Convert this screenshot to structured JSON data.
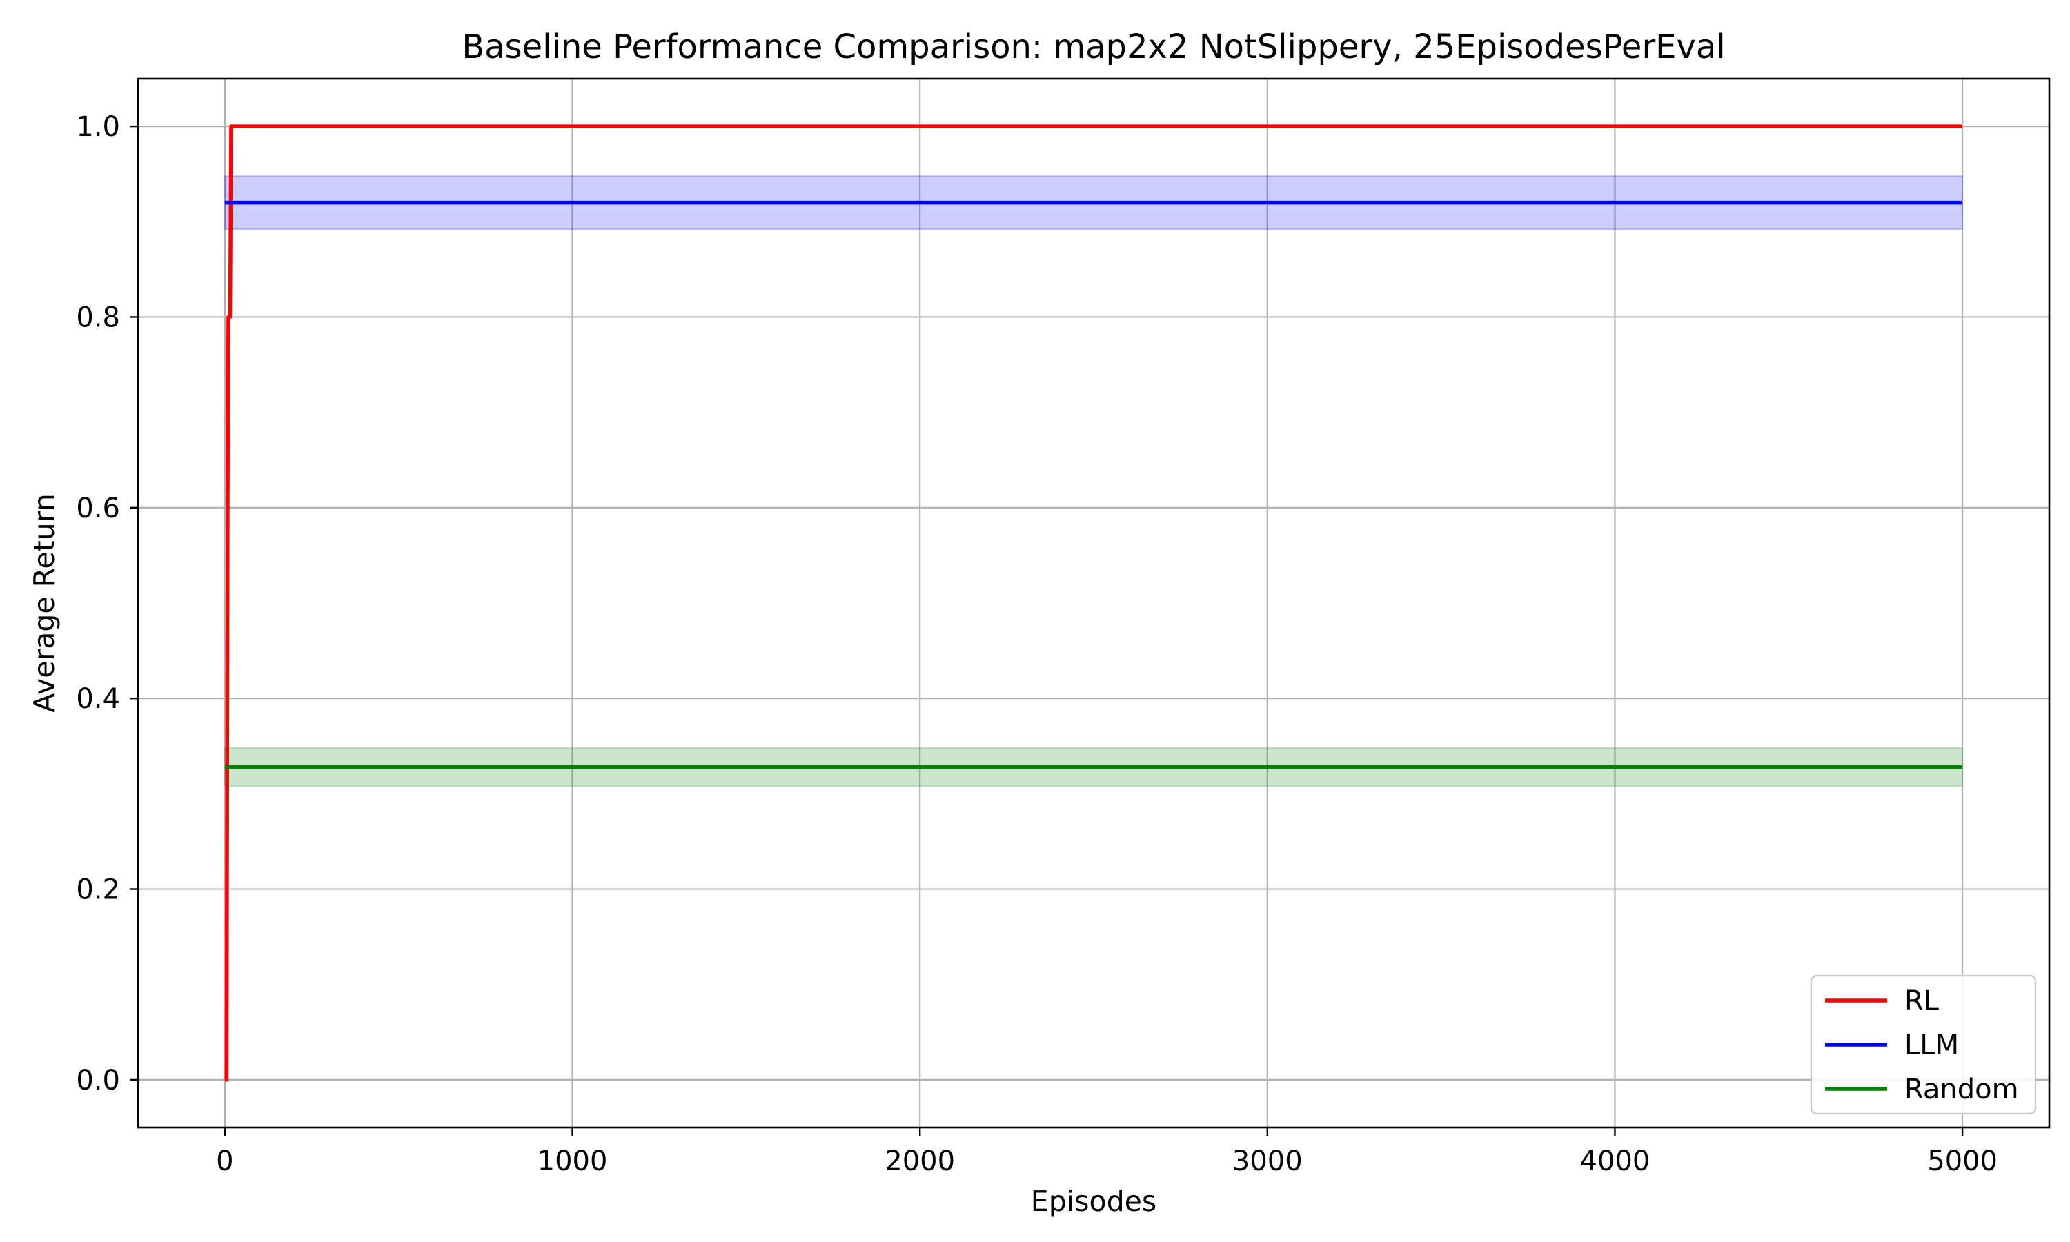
{
  "chart_data": {
    "type": "line",
    "title": "Baseline Performance Comparison: map2x2 NotSlippery, 25EpisodesPerEval",
    "xlabel": "Episodes",
    "ylabel": "Average Return",
    "xlim": [
      -250,
      5250
    ],
    "ylim": [
      -0.05,
      1.05
    ],
    "xticks": [
      0,
      1000,
      2000,
      3000,
      4000,
      5000
    ],
    "xtick_labels": [
      "0",
      "1000",
      "2000",
      "3000",
      "4000",
      "5000"
    ],
    "yticks": [
      0.0,
      0.2,
      0.4,
      0.6,
      0.8,
      1.0
    ],
    "ytick_labels": [
      "0.0",
      "0.2",
      "0.4",
      "0.6",
      "0.8",
      "1.0"
    ],
    "grid": true,
    "legend_position": "lower right",
    "series": [
      {
        "name": "RL",
        "color": "#ff0000",
        "points": [
          [
            0,
            0.0
          ],
          [
            5,
            0.0
          ],
          [
            8,
            0.6
          ],
          [
            10,
            0.8
          ],
          [
            15,
            0.8
          ],
          [
            18,
            1.0
          ],
          [
            5000,
            1.0
          ]
        ]
      },
      {
        "name": "LLM",
        "color": "#0000ff",
        "points": [
          [
            0,
            0.92
          ],
          [
            5000,
            0.92
          ]
        ],
        "band": {
          "low": 0.892,
          "high": 0.948,
          "x": [
            0,
            5000
          ]
        },
        "band_color": "#0000ff",
        "band_opacity": 0.2
      },
      {
        "name": "Random",
        "color": "#008000",
        "points": [
          [
            0,
            0.328
          ],
          [
            5000,
            0.328
          ]
        ],
        "band": {
          "low": 0.308,
          "high": 0.348,
          "x": [
            0,
            5000
          ]
        },
        "band_color": "#008000",
        "band_opacity": 0.2
      }
    ]
  }
}
